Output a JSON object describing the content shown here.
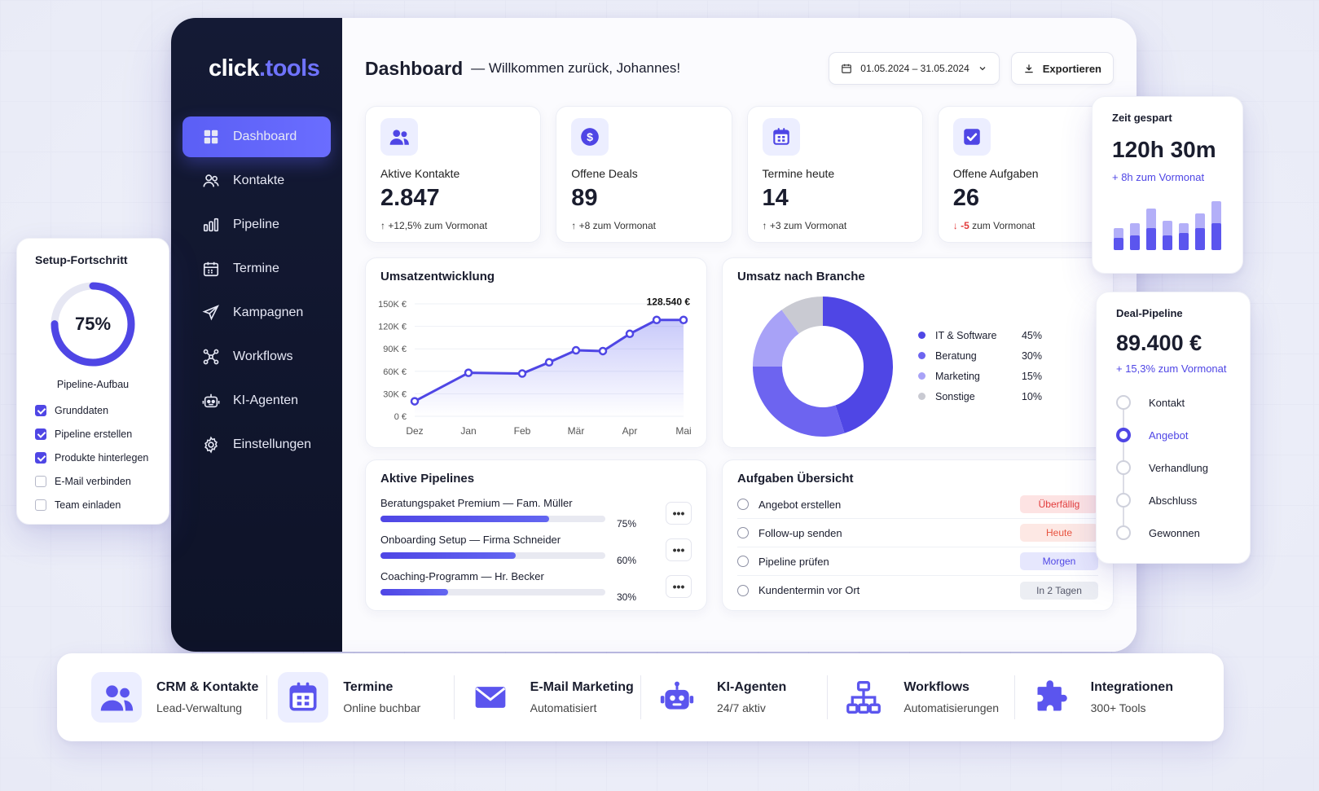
{
  "brand": {
    "logo_main": "click",
    "logo_accent": ".tools"
  },
  "sidebar": {
    "items": [
      {
        "label": "Dashboard",
        "icon": "grid-icon",
        "active": true
      },
      {
        "label": "Kontakte",
        "icon": "users-icon"
      },
      {
        "label": "Pipeline",
        "icon": "bar-chart-icon"
      },
      {
        "label": "Termine",
        "icon": "calendar-icon"
      },
      {
        "label": "Kampagnen",
        "icon": "send-icon"
      },
      {
        "label": "Workflows",
        "icon": "workflow-icon"
      },
      {
        "label": "KI-Agenten",
        "icon": "robot-icon"
      },
      {
        "label": "Einstellungen",
        "icon": "gear-icon"
      }
    ]
  },
  "header": {
    "title": "Dashboard",
    "subtitle": "— Willkommen zurück, Johannes!",
    "date_range": "01.05.2024 – 31.05.2024",
    "export_label": "Exportieren"
  },
  "kpis": [
    {
      "label": "Aktive Kontakte",
      "value": "2.847",
      "delta_arrow": "↑",
      "delta_value": "+12,5%",
      "delta_text": "zum Vormonat",
      "icon": "users-icon"
    },
    {
      "label": "Offene Deals",
      "value": "89",
      "delta_arrow": "↑",
      "delta_value": "+8",
      "delta_text": "zum Vormonat",
      "icon": "dollar-icon"
    },
    {
      "label": "Termine heute",
      "value": "14",
      "delta_arrow": "↑",
      "delta_value": "+3",
      "delta_text": "zum Vormonat",
      "icon": "calendar-icon"
    },
    {
      "label": "Offene Aufgaben",
      "value": "26",
      "delta_arrow": "↓",
      "delta_value": "-5",
      "delta_text": "zum Vormonat",
      "icon": "checkbox-icon"
    }
  ],
  "revenue_chart": {
    "title": "Umsatzentwicklung",
    "peak_label": "128.540 €"
  },
  "industry_chart": {
    "title": "Umsatz nach Branche"
  },
  "chart_data": [
    {
      "type": "line",
      "title": "Umsatzentwicklung",
      "x_ticks": [
        "Dez",
        "Jan",
        "Feb",
        "Mär",
        "Apr",
        "Mai"
      ],
      "y_ticks": [
        "0 €",
        "30K €",
        "60K €",
        "90K €",
        "120K €",
        "150K €"
      ],
      "ylim": [
        0,
        150000
      ],
      "series": [
        {
          "values": [
            20000,
            58000,
            57000,
            72000,
            88000,
            87000,
            110000,
            128540,
            128540
          ]
        }
      ],
      "x_positions": [
        0,
        1,
        2,
        2.5,
        3,
        3.5,
        4,
        4.5,
        5
      ],
      "grid": true
    },
    {
      "type": "pie",
      "title": "Umsatz nach Branche",
      "categories": [
        "IT & Software",
        "Beratung",
        "Marketing",
        "Sonstige"
      ],
      "values": [
        45,
        30,
        15,
        10
      ],
      "value_labels": [
        "45%",
        "30%",
        "15%",
        "10%"
      ],
      "colors": [
        "#4f46e5",
        "#6d64f0",
        "#a8a2f7",
        "#c9cad2"
      ],
      "legend": "right"
    }
  ],
  "pipelines": {
    "title": "Aktive Pipelines",
    "items": [
      {
        "name": "Beratungspaket Premium — Fam. Müller",
        "progress": 75,
        "pct": "75%"
      },
      {
        "name": "Onboarding Setup — Firma Schneider",
        "progress": 60,
        "pct": "60%"
      },
      {
        "name": "Coaching-Programm — Hr. Becker",
        "progress": 30,
        "pct": "30%"
      }
    ],
    "more_label": "•••"
  },
  "tasks": {
    "title": "Aufgaben Übersicht",
    "items": [
      {
        "label": "Angebot erstellen",
        "badge": "Überfällig",
        "badge_color": "#e23b3b",
        "badge_bg": "#fde3e3"
      },
      {
        "label": "Follow-up senden",
        "badge": "Heute",
        "badge_color": "#e8533f",
        "badge_bg": "#fde8e4"
      },
      {
        "label": "Pipeline prüfen",
        "badge": "Morgen",
        "badge_color": "#4f46e5",
        "badge_bg": "#e6e7fd"
      },
      {
        "label": "Kundentermin vor Ort",
        "badge": "In 2 Tagen",
        "badge_color": "#55586a",
        "badge_bg": "#eceef3"
      }
    ]
  },
  "setup": {
    "title": "Setup-Fortschritt",
    "percent_label": "75%",
    "progress": 75,
    "caption": "Pipeline-Aufbau",
    "items": [
      {
        "label": "Grunddaten",
        "done": true
      },
      {
        "label": "Pipeline erstellen",
        "done": true
      },
      {
        "label": "Produkte hinterlegen",
        "done": true
      },
      {
        "label": "E-Mail verbinden",
        "done": false
      },
      {
        "label": "Team einladen",
        "done": false
      }
    ]
  },
  "time_saved": {
    "title": "Zeit gespart",
    "value": "120h 30m",
    "delta": "+ 8h zum Vormonat",
    "bars": [
      {
        "light": 0.45,
        "dark": 0.25
      },
      {
        "light": 0.55,
        "dark": 0.3
      },
      {
        "light": 0.85,
        "dark": 0.45
      },
      {
        "light": 0.6,
        "dark": 0.3
      },
      {
        "light": 0.55,
        "dark": 0.35
      },
      {
        "light": 0.75,
        "dark": 0.45
      },
      {
        "light": 1.0,
        "dark": 0.55
      }
    ]
  },
  "deal_pipeline": {
    "title": "Deal-Pipeline",
    "value": "89.400 €",
    "delta": "+ 15,3% zum Vormonat",
    "stages": [
      {
        "label": "Kontakt",
        "active": false
      },
      {
        "label": "Angebot",
        "active": true
      },
      {
        "label": "Verhandlung",
        "active": false
      },
      {
        "label": "Abschluss",
        "active": false
      },
      {
        "label": "Gewonnen",
        "active": false
      }
    ]
  },
  "features": [
    {
      "title": "CRM & Kontakte",
      "sub": "Lead-Verwaltung",
      "icon": "users-icon"
    },
    {
      "title": "Termine",
      "sub": "Online buchbar",
      "icon": "calendar-icon"
    },
    {
      "title": "E-Mail Marketing",
      "sub": "Automatisiert",
      "icon": "mail-icon"
    },
    {
      "title": "KI-Agenten",
      "sub": "24/7 aktiv",
      "icon": "robot-icon"
    },
    {
      "title": "Workflows",
      "sub": "Automatisierungen",
      "icon": "workflow-icon"
    },
    {
      "title": "Integrationen",
      "sub": "300+ Tools",
      "icon": "puzzle-icon"
    }
  ],
  "colors": {
    "accent": "#4f46e5",
    "sidebar_bg": "#141a35",
    "negative": "#e23b3b"
  }
}
